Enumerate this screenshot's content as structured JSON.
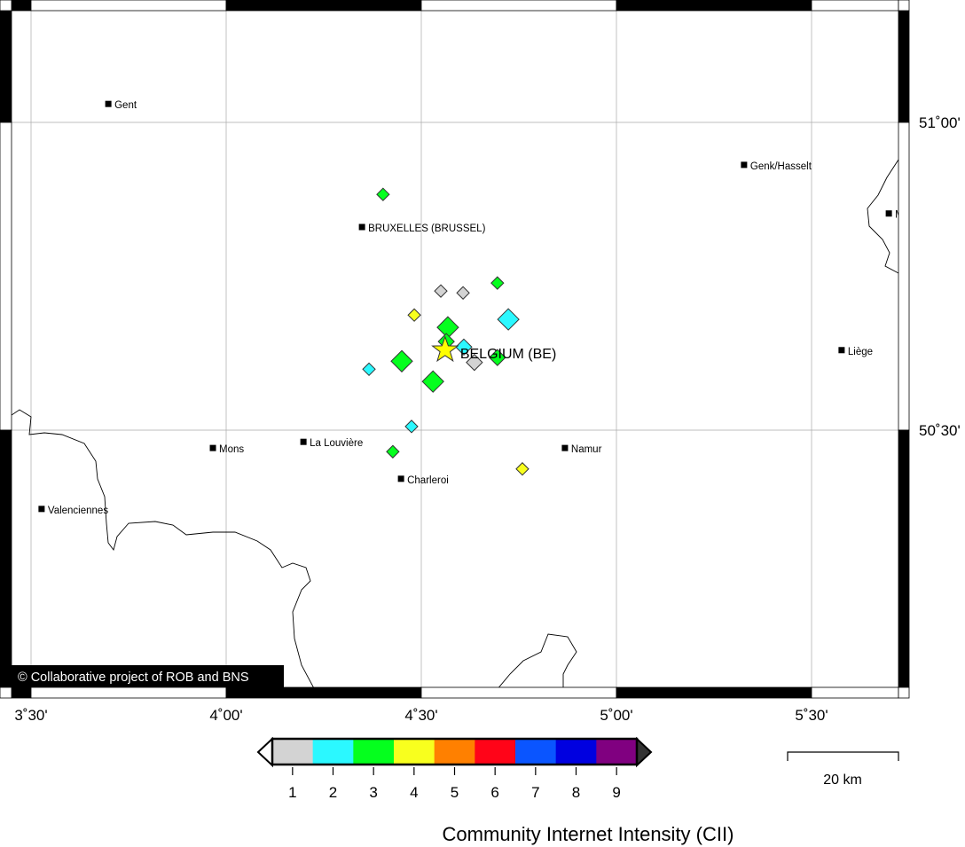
{
  "map": {
    "copyright": "© Collaborative project of ROB and BNS",
    "lon_ticks": [
      {
        "value": 3.5,
        "label": "3˚30'"
      },
      {
        "value": 4.0,
        "label": "4˚00'"
      },
      {
        "value": 4.5,
        "label": "4˚30'"
      },
      {
        "value": 5.0,
        "label": "5˚00'"
      },
      {
        "value": 5.5,
        "label": "5˚30'"
      }
    ],
    "lat_ticks": [
      {
        "value": 51.0,
        "label": "51˚00'"
      },
      {
        "value": 50.5,
        "label": "50˚30'"
      }
    ],
    "epicenter": {
      "lon": 4.561,
      "lat": 50.63,
      "label": "BELGIUM (BE)",
      "color": "#ffff00"
    },
    "cities": [
      {
        "name": "Gent",
        "lon": 3.698,
        "lat": 51.03
      },
      {
        "name": "BRUXELLES (BRUSSEL)",
        "lon": 4.348,
        "lat": 50.83
      },
      {
        "name": "Genk/Hasselt",
        "lon": 5.327,
        "lat": 50.931
      },
      {
        "name": "M",
        "lon": 5.698,
        "lat": 50.852
      },
      {
        "name": "Liège",
        "lon": 5.577,
        "lat": 50.63
      },
      {
        "name": "Mons",
        "lon": 3.966,
        "lat": 50.471
      },
      {
        "name": "La Louvière",
        "lon": 4.198,
        "lat": 50.481
      },
      {
        "name": "Namur",
        "lon": 4.868,
        "lat": 50.471
      },
      {
        "name": "Charleroi",
        "lon": 4.448,
        "lat": 50.421
      },
      {
        "name": "Valenciennes",
        "lon": 3.527,
        "lat": 50.372
      }
    ],
    "observations": [
      {
        "lon": 4.402,
        "lat": 50.883,
        "cii": 3,
        "size": "small"
      },
      {
        "lon": 4.695,
        "lat": 50.739,
        "cii": 3,
        "size": "small"
      },
      {
        "lon": 4.55,
        "lat": 50.726,
        "cii": 1,
        "size": "small"
      },
      {
        "lon": 4.607,
        "lat": 50.723,
        "cii": 1,
        "size": "small"
      },
      {
        "lon": 4.482,
        "lat": 50.687,
        "cii": 4,
        "size": "small"
      },
      {
        "lon": 4.723,
        "lat": 50.68,
        "cii": 2,
        "size": "large"
      },
      {
        "lon": 4.568,
        "lat": 50.667,
        "cii": 3,
        "size": "large"
      },
      {
        "lon": 4.564,
        "lat": 50.644,
        "cii": 3,
        "size": "medium"
      },
      {
        "lon": 4.609,
        "lat": 50.635,
        "cii": 2,
        "size": "medium"
      },
      {
        "lon": 4.695,
        "lat": 50.618,
        "cii": 3,
        "size": "medium"
      },
      {
        "lon": 4.636,
        "lat": 50.61,
        "cii": 1,
        "size": "medium"
      },
      {
        "lon": 4.45,
        "lat": 50.612,
        "cii": 3,
        "size": "large"
      },
      {
        "lon": 4.366,
        "lat": 50.599,
        "cii": 2,
        "size": "small"
      },
      {
        "lon": 4.53,
        "lat": 50.579,
        "cii": 3,
        "size": "large"
      },
      {
        "lon": 4.475,
        "lat": 50.506,
        "cii": 2,
        "size": "small"
      },
      {
        "lon": 4.427,
        "lat": 50.465,
        "cii": 3,
        "size": "small"
      },
      {
        "lon": 4.759,
        "lat": 50.437,
        "cii": 4,
        "size": "small"
      }
    ]
  },
  "legend": {
    "title": "Community Internet Intensity (CII)",
    "levels": [
      {
        "value": "1",
        "color": "#d3d3d3"
      },
      {
        "value": "2",
        "color": "#2bf8ff"
      },
      {
        "value": "3",
        "color": "#05ff1e"
      },
      {
        "value": "4",
        "color": "#f8ff1e"
      },
      {
        "value": "5",
        "color": "#ff8000"
      },
      {
        "value": "6",
        "color": "#ff0418"
      },
      {
        "value": "7",
        "color": "#0a55ff"
      },
      {
        "value": "8",
        "color": "#0000e0"
      },
      {
        "value": "9",
        "color": "#800080"
      }
    ]
  },
  "scale_bar": {
    "label": "20 km"
  }
}
